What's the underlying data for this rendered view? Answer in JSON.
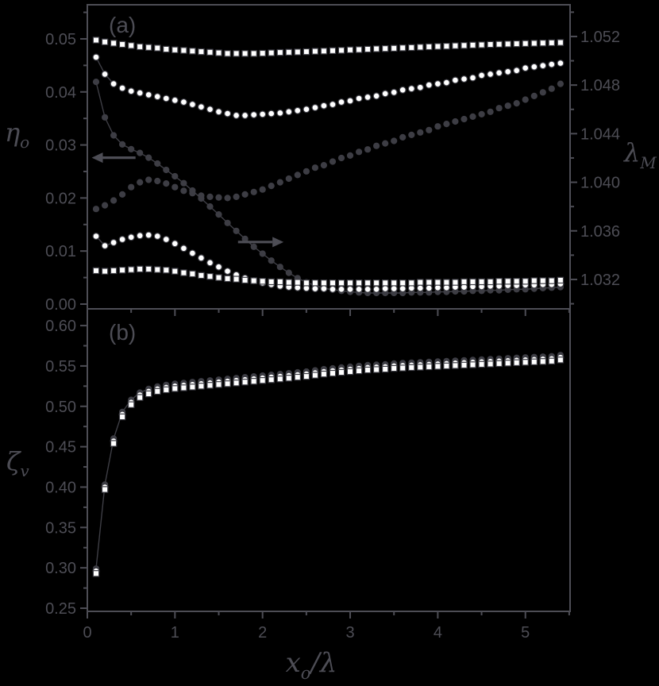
{
  "colors": {
    "background": "#000000",
    "axis": "#4d4d55",
    "gray_marker": "#3d3d44",
    "white_marker": "#ffffff",
    "marker_outline": "#3e3e45",
    "connect_line": "#3e3e45"
  },
  "panel_labels": {
    "a": "(a)",
    "b": "(b)"
  },
  "axis_titles": {
    "eta": {
      "main": "η",
      "sub": "o"
    },
    "lambda": {
      "main": "λ",
      "sub": "M"
    },
    "zeta": {
      "main": "ζ",
      "sub": "v"
    },
    "x": {
      "main": "x",
      "sub": "o",
      "rest": "/λ"
    }
  },
  "chart_data": [
    {
      "panel": "a",
      "type": "scatter",
      "title": "(a)",
      "xlabel": "x_o/lambda",
      "ylabel_left": "eta_o",
      "ylabel_right": "lambda_M",
      "x_range": [
        0,
        5.51
      ],
      "x_major_ticks": [
        1,
        2,
        3,
        4,
        5
      ],
      "x_minor_ticks": [
        0.5,
        1.5,
        2.5,
        3.5,
        4.5,
        5.5
      ],
      "x_tick_labels": [],
      "left_axis": {
        "range_at_frame": [
          -0.0009,
          0.05643
        ],
        "tick_values": [
          0,
          0.01,
          0.02,
          0.03,
          0.04,
          0.05
        ],
        "tick_labels": [
          "0.00",
          "0.01",
          "0.02",
          "0.03",
          "0.04",
          "0.05"
        ],
        "minor_ticks": [
          0.005,
          0.015,
          0.025,
          0.035,
          0.045,
          0.055
        ]
      },
      "right_axis": {
        "range_at_frame": [
          1.02958,
          1.05461
        ],
        "tick_values": [
          1.032,
          1.036,
          1.04,
          1.044,
          1.048,
          1.052
        ],
        "tick_labels": [
          "1.032",
          "1.036",
          "1.040",
          "1.044",
          "1.048",
          "1.052"
        ],
        "minor_ticks": [
          1.03,
          1.034,
          1.038,
          1.042,
          1.046,
          1.05,
          1.054
        ]
      },
      "x": [
        0.1,
        0.2,
        0.3,
        0.4,
        0.5,
        0.6,
        0.7,
        0.8,
        0.9,
        1.0,
        1.1,
        1.2,
        1.3,
        1.4,
        1.5,
        1.6,
        1.7,
        1.8,
        1.9,
        2.0,
        2.1,
        2.2,
        2.3,
        2.4,
        2.5,
        2.6,
        2.7,
        2.8,
        2.9,
        3.0,
        3.1,
        3.2,
        3.3,
        3.4,
        3.5,
        3.6,
        3.7,
        3.8,
        3.9,
        4.0,
        4.1,
        4.2,
        4.3,
        4.4,
        4.5,
        4.6,
        4.7,
        4.8,
        4.9,
        5.0,
        5.1,
        5.2,
        5.3,
        5.4
      ],
      "series": [
        {
          "name": "lambda-white-squares",
          "axis": "right",
          "marker": "square",
          "fill": "white",
          "line": "none",
          "values": [
            1.0517,
            1.05155,
            1.05145,
            1.05135,
            1.05125,
            1.05115,
            1.0511,
            1.05105,
            1.05095,
            1.0509,
            1.05085,
            1.0508,
            1.05075,
            1.0507,
            1.05065,
            1.0506,
            1.0506,
            1.0506,
            1.0506,
            1.05062,
            1.05065,
            1.05068,
            1.0507,
            1.05072,
            1.05075,
            1.05078,
            1.0508,
            1.05083,
            1.05086,
            1.0509,
            1.05092,
            1.05095,
            1.05098,
            1.051,
            1.05103,
            1.05106,
            1.05109,
            1.05112,
            1.05115,
            1.05118,
            1.0512,
            1.05123,
            1.05126,
            1.05129,
            1.05131,
            1.05134,
            1.05136,
            1.05138,
            1.0514,
            1.05142,
            1.05144,
            1.05146,
            1.05148,
            1.0515
          ]
        },
        {
          "name": "lambda-white-circles",
          "axis": "right",
          "marker": "circle",
          "fill": "white",
          "line": 3,
          "values": [
            1.0503,
            1.0489,
            1.0481,
            1.04775,
            1.0475,
            1.04735,
            1.0472,
            1.04705,
            1.0469,
            1.04675,
            1.0466,
            1.0464,
            1.0462,
            1.046,
            1.0458,
            1.04565,
            1.0455,
            1.0455,
            1.04555,
            1.0456,
            1.04565,
            1.0457,
            1.0458,
            1.0459,
            1.046,
            1.04615,
            1.0463,
            1.0464,
            1.0466,
            1.0467,
            1.0469,
            1.047,
            1.0471,
            1.0473,
            1.0474,
            1.0476,
            1.0477,
            1.0478,
            1.048,
            1.0481,
            1.0482,
            1.0484,
            1.0485,
            1.0486,
            1.0488,
            1.0489,
            1.049,
            1.0491,
            1.0492,
            1.0494,
            1.0495,
            1.0496,
            1.0497,
            1.0498
          ]
        },
        {
          "name": "lambda-gray-circles",
          "axis": "right",
          "marker": "circle",
          "fill": "gray",
          "line": "none",
          "values": [
            1.0378,
            1.0381,
            1.0385,
            1.039,
            1.0396,
            1.04,
            1.0402,
            1.0401,
            1.0399,
            1.0396,
            1.0393,
            1.0391,
            1.0389,
            1.0388,
            1.03875,
            1.0387,
            1.0388,
            1.039,
            1.0392,
            1.0394,
            1.0397,
            1.04,
            1.0403,
            1.0406,
            1.0409,
            1.0412,
            1.0414,
            1.0417,
            1.042,
            1.0422,
            1.0425,
            1.0427,
            1.043,
            1.0432,
            1.0434,
            1.0437,
            1.0439,
            1.0441,
            1.0443,
            1.0446,
            1.0448,
            1.045,
            1.0452,
            1.0454,
            1.0456,
            1.0458,
            1.0461,
            1.0463,
            1.0465,
            1.0468,
            1.0471,
            1.0474,
            1.0477,
            1.0481
          ]
        },
        {
          "name": "eta-gray-circles-line",
          "axis": "left",
          "marker": "circle",
          "fill": "gray",
          "line": "full",
          "values": [
            0.0419,
            0.0352,
            0.0318,
            0.0301,
            0.0292,
            0.0285,
            0.0276,
            0.0265,
            0.0253,
            0.0241,
            0.0228,
            0.0214,
            0.0199,
            0.0184,
            0.0169,
            0.0153,
            0.0138,
            0.0123,
            0.0108,
            0.0095,
            0.0082,
            0.007,
            0.0059,
            0.0049,
            0.0041,
            0.0035,
            0.003,
            0.0027,
            0.0025,
            0.0023,
            0.0022,
            0.0021,
            0.0021,
            0.0021,
            0.0021,
            0.0021,
            0.0022,
            0.0022,
            0.0022,
            0.0023,
            0.0023,
            0.0024,
            0.0024,
            0.0025,
            0.0025,
            0.0026,
            0.0026,
            0.0027,
            0.0028,
            0.0028,
            0.0029,
            0.003,
            0.0031,
            0.0032
          ]
        },
        {
          "name": "eta-white-circles",
          "axis": "left",
          "marker": "circle",
          "fill": "white",
          "line": 3,
          "values": [
            0.0128,
            0.011,
            0.0116,
            0.0122,
            0.0126,
            0.0129,
            0.013,
            0.0128,
            0.0122,
            0.0114,
            0.0105,
            0.0096,
            0.0087,
            0.0078,
            0.007,
            0.0062,
            0.0055,
            0.0049,
            0.0044,
            0.004,
            0.0037,
            0.0034,
            0.0032,
            0.0031,
            0.003,
            0.0029,
            0.0029,
            0.0028,
            0.0028,
            0.0028,
            0.0028,
            0.0028,
            0.0028,
            0.0029,
            0.0029,
            0.0029,
            0.003,
            0.003,
            0.003,
            0.0031,
            0.0031,
            0.0032,
            0.0032,
            0.0033,
            0.0033,
            0.0034,
            0.0034,
            0.0035,
            0.0035,
            0.0036,
            0.0036,
            0.0037,
            0.0037,
            0.0038
          ]
        },
        {
          "name": "eta-white-squares",
          "axis": "left",
          "marker": "square",
          "fill": "white",
          "line": "none",
          "values": [
            0.0063,
            0.0062,
            0.0063,
            0.0064,
            0.0065,
            0.0066,
            0.0066,
            0.0065,
            0.0064,
            0.0062,
            0.0059,
            0.0057,
            0.0054,
            0.0052,
            0.005,
            0.0048,
            0.0047,
            0.0045,
            0.0044,
            0.0043,
            0.0042,
            0.0042,
            0.0041,
            0.0041,
            0.004,
            0.004,
            0.004,
            0.004,
            0.004,
            0.004,
            0.004,
            0.004,
            0.004,
            0.004,
            0.004,
            0.004,
            0.004,
            0.0041,
            0.0041,
            0.0041,
            0.0041,
            0.0041,
            0.0042,
            0.0042,
            0.0042,
            0.0042,
            0.0043,
            0.0043,
            0.0043,
            0.0043,
            0.0044,
            0.0044,
            0.0044,
            0.0045
          ]
        }
      ],
      "annotations": {
        "left_arrow": {
          "x_tail": 0.55,
          "x_head": 0.05,
          "value": 0.0276,
          "axis": "left"
        },
        "right_arrow": {
          "x_tail": 1.72,
          "x_head": 2.24,
          "value": 0.0117,
          "axis": "left"
        }
      }
    },
    {
      "panel": "b",
      "type": "scatter",
      "title": "(b)",
      "xlabel": "x_o/lambda",
      "ylabel_left": "zeta_v",
      "x_range": [
        0,
        5.51
      ],
      "x_major_ticks": [
        0,
        1,
        2,
        3,
        4,
        5
      ],
      "x_minor_ticks": [
        0.5,
        1.5,
        2.5,
        3.5,
        4.5,
        5.5
      ],
      "x_tick_labels": [
        "0",
        "1",
        "2",
        "3",
        "4",
        "5"
      ],
      "left_axis": {
        "range_at_frame": [
          0.2461,
          0.6207
        ],
        "tick_values": [
          0.25,
          0.3,
          0.35,
          0.4,
          0.45,
          0.5,
          0.55,
          0.6
        ],
        "tick_labels": [
          "0.25",
          "0.30",
          "0.35",
          "0.40",
          "0.45",
          "0.50",
          "0.55",
          "0.60"
        ],
        "minor_ticks": [
          0.275,
          0.325,
          0.375,
          0.425,
          0.475,
          0.525,
          0.575
        ]
      },
      "x": [
        0.1,
        0.2,
        0.3,
        0.4,
        0.5,
        0.6,
        0.7,
        0.8,
        0.9,
        1.0,
        1.1,
        1.2,
        1.3,
        1.4,
        1.5,
        1.6,
        1.7,
        1.8,
        1.9,
        2.0,
        2.1,
        2.2,
        2.3,
        2.4,
        2.5,
        2.6,
        2.7,
        2.8,
        2.9,
        3.0,
        3.1,
        3.2,
        3.3,
        3.4,
        3.5,
        3.6,
        3.7,
        3.8,
        3.9,
        4.0,
        4.1,
        4.2,
        4.3,
        4.4,
        4.5,
        4.6,
        4.7,
        4.8,
        4.9,
        5.0,
        5.1,
        5.2,
        5.3,
        5.4
      ],
      "series": [
        {
          "name": "zeta-gray-circles",
          "axis": "left",
          "marker": "circle",
          "fill": "gray",
          "line": 7,
          "values": [
            0.299,
            0.403,
            0.46,
            0.493,
            0.508,
            0.517,
            0.5215,
            0.5245,
            0.5265,
            0.528,
            0.529,
            0.53,
            0.531,
            0.532,
            0.533,
            0.534,
            0.535,
            0.536,
            0.537,
            0.538,
            0.539,
            0.54,
            0.541,
            0.542,
            0.543,
            0.5445,
            0.546,
            0.547,
            0.548,
            0.549,
            0.55,
            0.551,
            0.5515,
            0.552,
            0.553,
            0.5535,
            0.554,
            0.5545,
            0.555,
            0.5555,
            0.556,
            0.5565,
            0.557,
            0.5575,
            0.558,
            0.5585,
            0.559,
            0.5595,
            0.56,
            0.5605,
            0.561,
            0.5615,
            0.562,
            0.5635
          ]
        },
        {
          "name": "zeta-white-circles",
          "axis": "left",
          "marker": "circle",
          "fill": "white",
          "line": "none",
          "values": [
            0.296,
            0.4,
            0.457,
            0.49,
            0.505,
            0.514,
            0.5185,
            0.5215,
            0.5235,
            0.525,
            0.526,
            0.527,
            0.528,
            0.529,
            0.53,
            0.531,
            0.532,
            0.533,
            0.534,
            0.535,
            0.536,
            0.537,
            0.538,
            0.539,
            0.54,
            0.5415,
            0.543,
            0.544,
            0.545,
            0.546,
            0.547,
            0.548,
            0.5485,
            0.549,
            0.55,
            0.5505,
            0.551,
            0.5515,
            0.552,
            0.5525,
            0.553,
            0.5535,
            0.554,
            0.5545,
            0.555,
            0.5555,
            0.556,
            0.5565,
            0.557,
            0.5575,
            0.558,
            0.5585,
            0.559,
            0.5605
          ]
        },
        {
          "name": "zeta-white-squares",
          "axis": "left",
          "marker": "square",
          "fill": "white",
          "line": "none",
          "values": [
            0.293,
            0.397,
            0.454,
            0.487,
            0.502,
            0.511,
            0.5155,
            0.5185,
            0.5205,
            0.522,
            0.523,
            0.524,
            0.525,
            0.526,
            0.527,
            0.528,
            0.529,
            0.53,
            0.531,
            0.532,
            0.533,
            0.534,
            0.535,
            0.536,
            0.537,
            0.5385,
            0.54,
            0.541,
            0.542,
            0.543,
            0.544,
            0.545,
            0.5455,
            0.546,
            0.547,
            0.5475,
            0.548,
            0.5485,
            0.549,
            0.5495,
            0.55,
            0.5505,
            0.551,
            0.5515,
            0.552,
            0.5525,
            0.553,
            0.5535,
            0.554,
            0.5545,
            0.555,
            0.5555,
            0.556,
            0.5575
          ]
        }
      ]
    }
  ]
}
